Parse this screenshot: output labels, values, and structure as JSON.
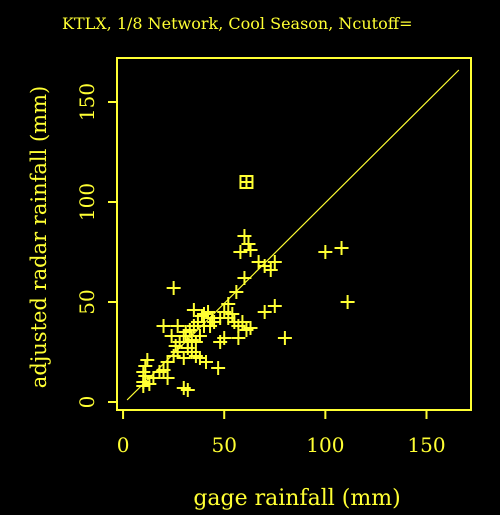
{
  "colors": {
    "background": "#000000",
    "foreground": "#ffff33"
  },
  "chart_data": {
    "type": "scatter",
    "title": "KTLX, 1/8 Network, Cool Season, Ncutoff=",
    "xlabel": "gage rainfall (mm)",
    "ylabel": "adjusted radar rainfall (mm)",
    "xlim": [
      -3,
      172
    ],
    "ylim": [
      -4,
      172
    ],
    "xticks": [
      0,
      50,
      100,
      150
    ],
    "yticks": [
      0,
      50,
      100,
      150
    ],
    "xtick_labels": [
      "0",
      "50",
      "100",
      "150"
    ],
    "ytick_labels": [
      "0",
      "50",
      "100",
      "150"
    ],
    "grid": false,
    "fit_line": {
      "x": [
        2,
        166
      ],
      "y": [
        1,
        166
      ]
    },
    "outlier_marker": "boxed-plus",
    "outlier": {
      "x": 61,
      "y": 110
    },
    "points": [
      [
        10,
        10
      ],
      [
        11,
        13
      ],
      [
        10,
        15
      ],
      [
        11,
        18
      ],
      [
        12,
        21
      ],
      [
        10,
        8
      ],
      [
        13,
        9
      ],
      [
        15,
        12
      ],
      [
        18,
        15
      ],
      [
        20,
        16
      ],
      [
        22,
        20
      ],
      [
        25,
        23
      ],
      [
        27,
        25
      ],
      [
        20,
        38
      ],
      [
        24,
        33
      ],
      [
        26,
        28
      ],
      [
        28,
        30
      ],
      [
        30,
        33
      ],
      [
        31,
        35
      ],
      [
        33,
        36
      ],
      [
        35,
        38
      ],
      [
        37,
        40
      ],
      [
        39,
        43
      ],
      [
        40,
        44
      ],
      [
        42,
        45
      ],
      [
        44,
        42
      ],
      [
        40,
        38
      ],
      [
        38,
        33
      ],
      [
        36,
        30
      ],
      [
        34,
        25
      ],
      [
        30,
        22
      ],
      [
        32,
        27
      ],
      [
        36,
        23
      ],
      [
        38,
        22
      ],
      [
        41,
        20
      ],
      [
        47,
        17
      ],
      [
        30,
        7
      ],
      [
        32,
        6
      ],
      [
        25,
        57
      ],
      [
        35,
        46
      ],
      [
        43,
        38
      ],
      [
        45,
        40
      ],
      [
        48,
        42
      ],
      [
        50,
        45
      ],
      [
        52,
        49
      ],
      [
        56,
        55
      ],
      [
        60,
        62
      ],
      [
        58,
        75
      ],
      [
        60,
        83
      ],
      [
        62,
        79
      ],
      [
        63,
        76
      ],
      [
        67,
        70
      ],
      [
        70,
        68
      ],
      [
        73,
        66
      ],
      [
        75,
        70
      ],
      [
        55,
        40
      ],
      [
        57,
        38
      ],
      [
        59,
        40
      ],
      [
        61,
        36
      ],
      [
        63,
        37
      ],
      [
        57,
        32
      ],
      [
        70,
        45
      ],
      [
        75,
        48
      ],
      [
        80,
        32
      ],
      [
        50,
        32
      ],
      [
        52,
        42
      ],
      [
        54,
        44
      ],
      [
        48,
        30
      ],
      [
        32,
        30
      ],
      [
        34,
        31
      ],
      [
        27,
        38
      ],
      [
        22,
        12
      ],
      [
        100,
        75
      ],
      [
        108,
        77
      ],
      [
        111,
        50
      ]
    ]
  }
}
